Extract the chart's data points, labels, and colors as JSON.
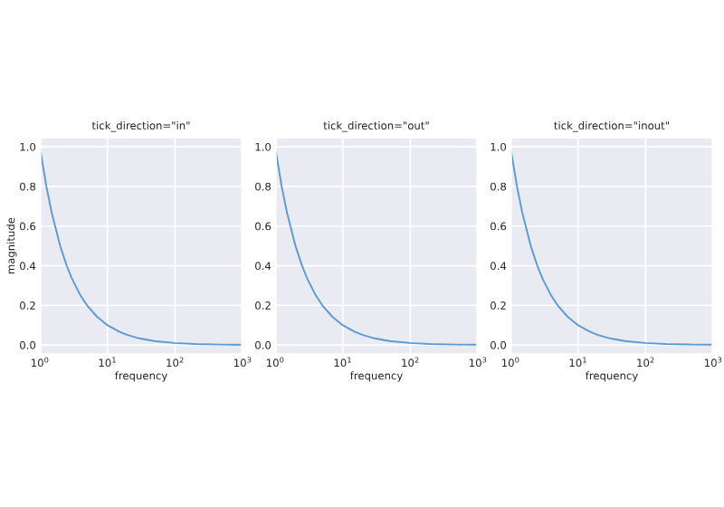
{
  "chart_data": [
    {
      "type": "line",
      "title": "tick_direction=\"in\"",
      "xlabel": "frequency",
      "ylabel": "magnitude",
      "log": "x",
      "grid": true,
      "x": [
        1,
        1.25,
        1.5,
        2,
        2.5,
        3,
        4,
        5,
        7,
        10,
        15,
        20,
        30,
        50,
        100,
        200,
        500,
        1000
      ],
      "series": [
        {
          "color": "#5b9bd5",
          "values": [
            1,
            0.8,
            0.667,
            0.5,
            0.4,
            0.333,
            0.25,
            0.2,
            0.143,
            0.1,
            0.067,
            0.05,
            0.033,
            0.02,
            0.01,
            0.005,
            0.002,
            0.001
          ]
        }
      ],
      "xlim": [
        1,
        1000
      ],
      "xticks": [
        {
          "value": 1,
          "label": "10$^{0}$"
        },
        {
          "value": 10,
          "label": "10$^{1}$"
        },
        {
          "value": 100,
          "label": "10$^{2}$"
        },
        {
          "value": 1000,
          "label": "10$^{3}$"
        }
      ],
      "ylim": [
        -0.05,
        1.05
      ],
      "yticks": [
        {
          "value": 0,
          "label": "0.0"
        },
        {
          "value": 0.2,
          "label": "0.2"
        },
        {
          "value": 0.4,
          "label": "0.4"
        },
        {
          "value": 0.6,
          "label": "0.6"
        },
        {
          "value": 0.8,
          "label": "0.8"
        },
        {
          "value": 1,
          "label": "1.0"
        }
      ]
    },
    {
      "type": "line",
      "title": "tick_direction=\"out\"",
      "xlabel": "frequency",
      "log": "x",
      "grid": true,
      "x": [
        1,
        1.25,
        1.5,
        2,
        2.5,
        3,
        4,
        5,
        7,
        10,
        15,
        20,
        30,
        50,
        100,
        200,
        500,
        1000
      ],
      "series": [
        {
          "color": "#5b9bd5",
          "values": [
            1,
            0.8,
            0.667,
            0.5,
            0.4,
            0.333,
            0.25,
            0.2,
            0.143,
            0.1,
            0.067,
            0.05,
            0.033,
            0.02,
            0.01,
            0.005,
            0.002,
            0.001
          ]
        }
      ],
      "xlim": [
        1,
        1000
      ],
      "xticks": [
        {
          "value": 1,
          "label": "10$^{0}$"
        },
        {
          "value": 10,
          "label": "10$^{1}$"
        },
        {
          "value": 100,
          "label": "10$^{2}$"
        },
        {
          "value": 1000,
          "label": "10$^{3}$"
        }
      ],
      "ylim": [
        -0.05,
        1.05
      ],
      "yticks": [
        {
          "value": 0,
          "label": "0.0"
        },
        {
          "value": 0.2,
          "label": "0.2"
        },
        {
          "value": 0.4,
          "label": "0.4"
        },
        {
          "value": 0.6,
          "label": "0.6"
        },
        {
          "value": 0.8,
          "label": "0.8"
        },
        {
          "value": 1,
          "label": "1.0"
        }
      ]
    },
    {
      "type": "line",
      "title": "tick_direction=\"inout\"",
      "xlabel": "frequency",
      "log": "x",
      "grid": true,
      "x": [
        1,
        1.25,
        1.5,
        2,
        2.5,
        3,
        4,
        5,
        7,
        10,
        15,
        20,
        30,
        50,
        100,
        200,
        500,
        1000
      ],
      "series": [
        {
          "color": "#5b9bd5",
          "values": [
            1,
            0.8,
            0.667,
            0.5,
            0.4,
            0.333,
            0.25,
            0.2,
            0.143,
            0.1,
            0.067,
            0.05,
            0.033,
            0.02,
            0.01,
            0.005,
            0.002,
            0.001
          ]
        }
      ],
      "xlim": [
        1,
        1000
      ],
      "xticks": [
        {
          "value": 1,
          "label": "10$^{0}$"
        },
        {
          "value": 10,
          "label": "10$^{1}$"
        },
        {
          "value": 100,
          "label": "10$^{2}$"
        },
        {
          "value": 1000,
          "label": "10$^{3}$"
        }
      ],
      "ylim": [
        -0.05,
        1.05
      ],
      "yticks": [
        {
          "value": 0,
          "label": "0.0"
        },
        {
          "value": 0.2,
          "label": "0.2"
        },
        {
          "value": 0.4,
          "label": "0.4"
        },
        {
          "value": 0.6,
          "label": "0.6"
        },
        {
          "value": 0.8,
          "label": "0.8"
        },
        {
          "value": 1,
          "label": "1.0"
        }
      ]
    }
  ]
}
